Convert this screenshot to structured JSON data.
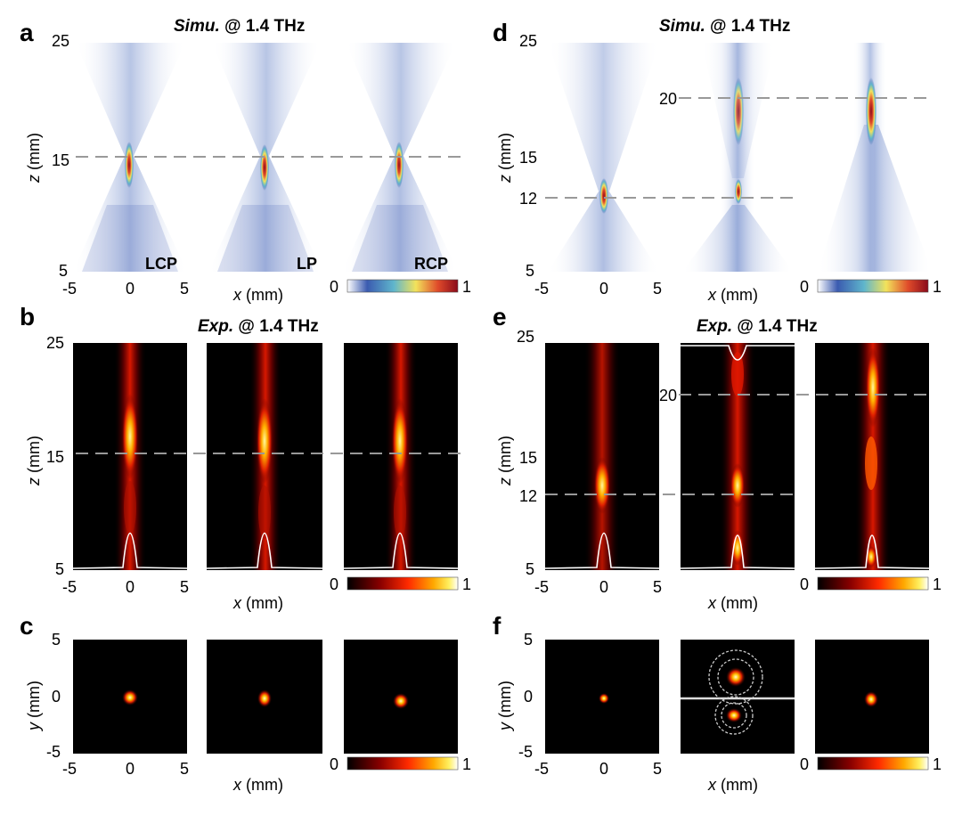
{
  "figure": {
    "a": {
      "letter": "a",
      "title_italic": "Simu.",
      "title_rest": " @ 1.4 THz",
      "ylabel_var": "z",
      "ylabel_unit": " (mm)",
      "yticks": [
        "25",
        "15",
        "5"
      ],
      "xlabel_var": "x",
      "xlabel_unit": " (mm)",
      "xticks": [
        "-5",
        "0",
        "5"
      ],
      "panel_labels": [
        "LCP",
        "LP",
        "RCP"
      ],
      "colorbar": {
        "min": "0",
        "max": "1",
        "colors": [
          "#ffffff",
          "#2e4fa3",
          "#5bb2c9",
          "#f3e35a",
          "#e04a2b",
          "#8b0a1a"
        ]
      }
    },
    "b": {
      "letter": "b",
      "title_italic": "Exp.",
      "title_rest": " @ 1.4 THz",
      "ylabel_var": "z",
      "ylabel_unit": " (mm)",
      "yticks": [
        "25",
        "15",
        "5"
      ],
      "xlabel_var": "x",
      "xlabel_unit": " (mm)",
      "xticks": [
        "-5",
        "0",
        "5"
      ],
      "colorbar": {
        "min": "0",
        "max": "1",
        "colors": [
          "#000000",
          "#7a0000",
          "#e01010",
          "#ff8a00",
          "#ffe84a",
          "#ffffff"
        ]
      }
    },
    "c": {
      "letter": "c",
      "ylabel_var": "y",
      "ylabel_unit": " (mm)",
      "yticks": [
        "5",
        "0",
        "-5"
      ],
      "xlabel_var": "x",
      "xlabel_unit": " (mm)",
      "xticks": [
        "-5",
        "0",
        "5"
      ],
      "colorbar": {
        "min": "0",
        "max": "1"
      }
    },
    "d": {
      "letter": "d",
      "title_italic": "Simu.",
      "title_rest": " @ 1.4 THz",
      "ylabel_var": "z",
      "ylabel_unit": " (mm)",
      "yticks": [
        "25",
        "20",
        "15",
        "12",
        "5"
      ],
      "xlabel_var": "x",
      "xlabel_unit": " (mm)",
      "xticks": [
        "-5",
        "0",
        "5"
      ],
      "colorbar": {
        "min": "0",
        "max": "1"
      }
    },
    "e": {
      "letter": "e",
      "title_italic": "Exp.",
      "title_rest": " @ 1.4 THz",
      "ylabel_var": "z",
      "ylabel_unit": " (mm)",
      "yticks": [
        "25",
        "20",
        "15",
        "12",
        "5"
      ],
      "xlabel_var": "x",
      "xlabel_unit": " (mm)",
      "xticks": [
        "-5",
        "0",
        "5"
      ],
      "colorbar": {
        "min": "0",
        "max": "1"
      }
    },
    "f": {
      "letter": "f",
      "ylabel_var": "y",
      "ylabel_unit": " (mm)",
      "yticks": [
        "5",
        "0",
        "-5"
      ],
      "xlabel_var": "x",
      "xlabel_unit": " (mm)",
      "xticks": [
        "-5",
        "0",
        "5"
      ],
      "colorbar": {
        "min": "0",
        "max": "1"
      }
    }
  }
}
